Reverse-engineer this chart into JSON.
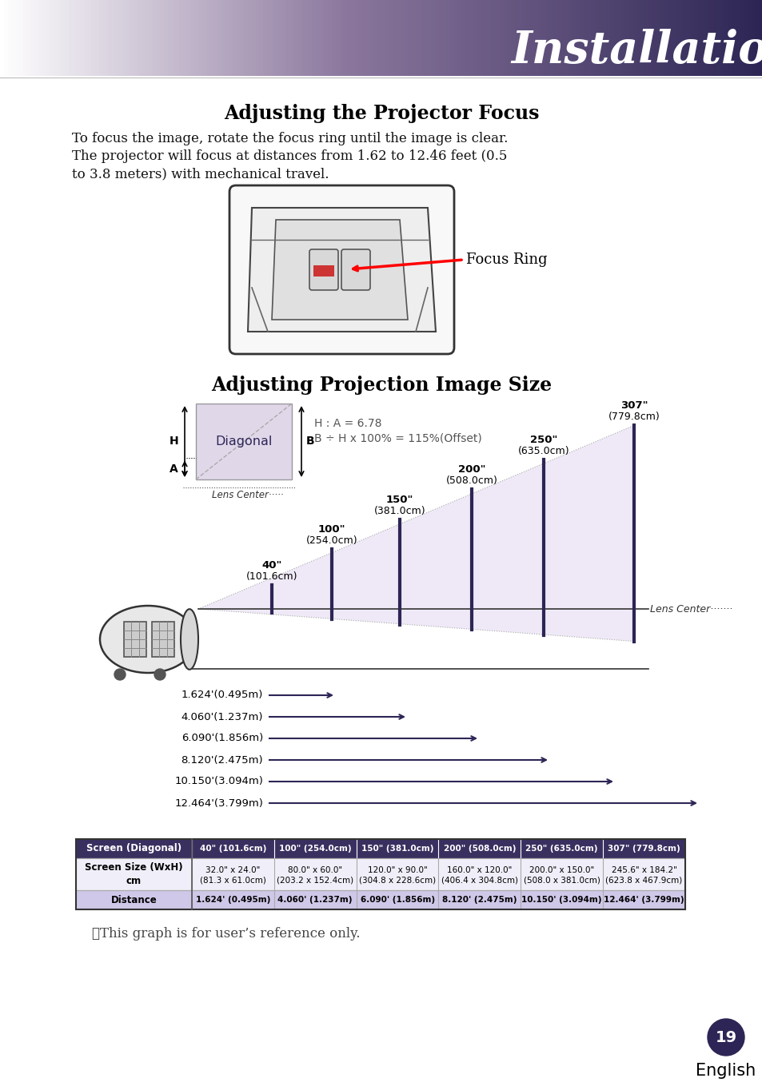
{
  "title_text": "Installation",
  "section1_title": "Adjusting the Projector Focus",
  "section1_text": "To focus the image, rotate the focus ring until the image is clear.\nThe projector will focus at distances from 1.62 to 12.46 feet (0.5\nto 3.8 meters) with mechanical travel.",
  "focus_ring_label": "Focus Ring",
  "section2_title": "Adjusting Projection Image Size",
  "diagram_label_diagonal": "Diagonal",
  "diagram_formula1": "H : A = 6.78",
  "diagram_formula2": "B ÷ H x 100% = 115%(Offset)",
  "distances": [
    "1.624'(0.495m)",
    "4.060'(1.237m)",
    "6.090'(1.856m)",
    "8.120'(2.475m)",
    "10.150'(3.094m)",
    "12.464'(3.799m)"
  ],
  "table_col1": [
    "40\" (101.6cm)",
    "100\" (254.0cm)",
    "150\" (381.0cm)",
    "200\" (508.0cm)",
    "250\" (635.0cm)",
    "307\" (779.8cm)"
  ],
  "table_col2_line1": [
    "32.0\" x 24.0\"",
    "80.0\" x 60.0\"",
    "120.0\" x 90.0\"",
    "160.0\" x 120.0\"",
    "200.0\" x 150.0\"",
    "245.6\" x 184.2\""
  ],
  "table_col2_line2": [
    "(81.3 x 61.0cm)",
    "(203.2 x 152.4cm)",
    "(304.8 x 228.6cm)",
    "(406.4 x 304.8cm)",
    "(508.0 x 381.0cm)",
    "(623.8 x 467.9cm)"
  ],
  "table_col3": [
    "1.624' (0.495m)",
    "4.060' (1.237m)",
    "6.090' (1.856m)",
    "8.120' (2.475m)",
    "10.150' (3.094m)",
    "12.464' (3.799m)"
  ],
  "note_text": "❖This graph is for user’s reference only.",
  "page_number": "19",
  "english_label": "English",
  "purple_dark": "#2d2555",
  "purple_mid": "#7b6fa0",
  "purple_light": "#c8b8d8",
  "purple_very_light": "#ebe4f5",
  "table_header_bg": "#3a3060",
  "table_row1_bg": "#f0eef8",
  "table_bold_bg": "#d0c8e8"
}
